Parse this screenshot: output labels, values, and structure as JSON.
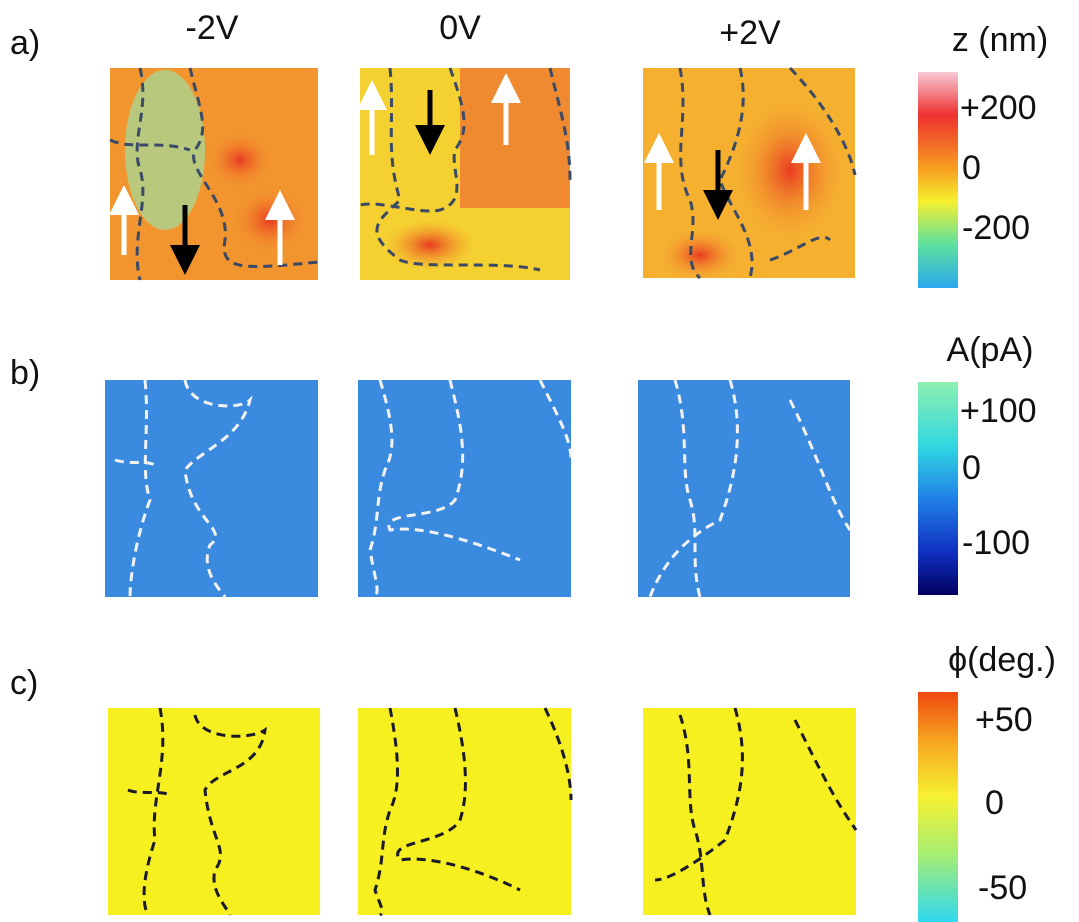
{
  "row_labels": [
    "a)",
    "b)",
    "c)"
  ],
  "column_labels": [
    "-2V",
    "0V",
    "+2V"
  ],
  "colorbars": [
    {
      "title": "z (nm)",
      "labels": [
        "+200",
        "0",
        "-200"
      ]
    },
    {
      "title": "A(pA)",
      "labels": [
        "+100",
        "0",
        "-100"
      ]
    },
    {
      "title": "ϕ(deg.)",
      "labels": [
        "+50",
        "0",
        "-50"
      ]
    }
  ]
}
